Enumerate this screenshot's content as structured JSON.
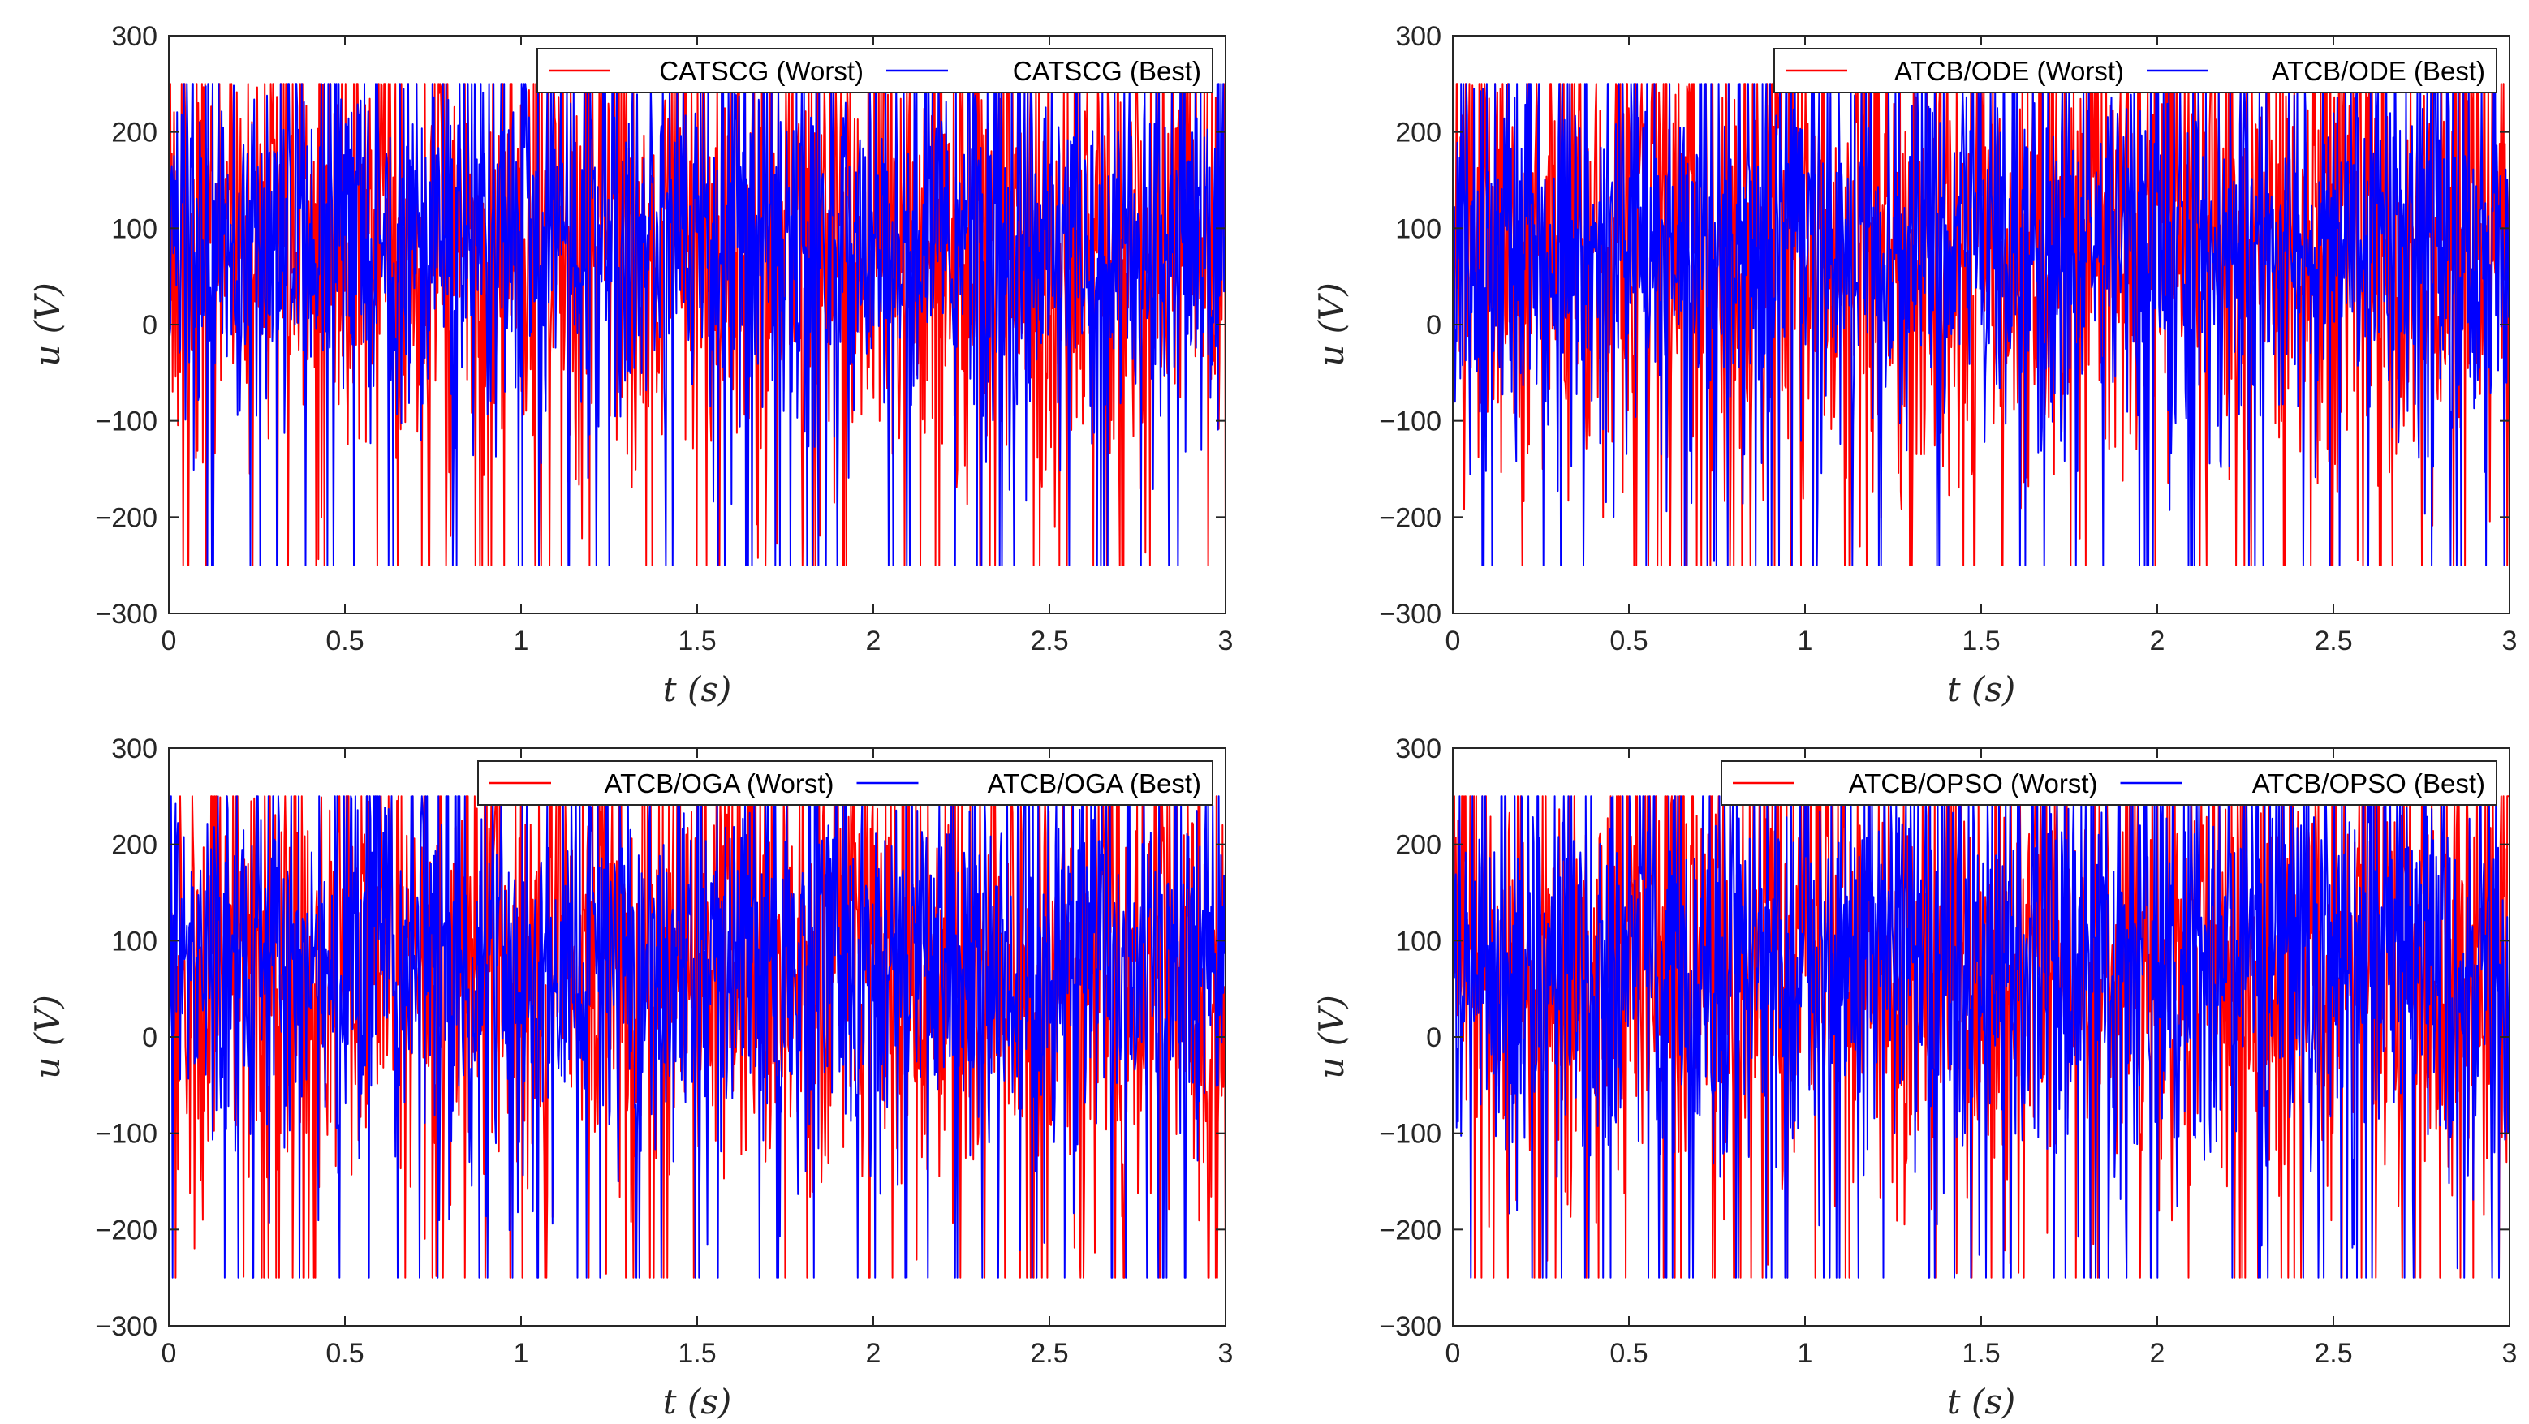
{
  "chart_data": [
    {
      "type": "line",
      "title": "",
      "xlabel": "t (s)",
      "ylabel": "u (V)",
      "xlim": [
        0,
        3
      ],
      "ylim": [
        -300,
        300
      ],
      "xticks": [
        "0",
        "0.5",
        "1",
        "1.5",
        "2",
        "2.5",
        "3"
      ],
      "yticks": [
        "300",
        "200",
        "100",
        "0",
        "−100",
        "−200",
        "−300"
      ],
      "saturation": [
        -250,
        250
      ],
      "grid": false,
      "legend": "top-right",
      "series": [
        {
          "name": "CATSCG (Worst)",
          "color": "#ff0000",
          "mean": 80,
          "spread": 115,
          "min": -250,
          "max": 250
        },
        {
          "name": "CATSCG (Best)",
          "color": "#0000ff",
          "mean": 80,
          "spread": 100,
          "min": -250,
          "max": 250
        }
      ]
    },
    {
      "type": "line",
      "title": "",
      "xlabel": "t (s)",
      "ylabel": "u (V)",
      "xlim": [
        0,
        3
      ],
      "ylim": [
        -300,
        300
      ],
      "xticks": [
        "0",
        "0.5",
        "1",
        "1.5",
        "2",
        "2.5",
        "3"
      ],
      "yticks": [
        "300",
        "200",
        "100",
        "0",
        "−100",
        "−200",
        "−300"
      ],
      "saturation": [
        -250,
        250
      ],
      "grid": false,
      "legend": "top-right",
      "series": [
        {
          "name": "ATCB/ODE (Worst)",
          "color": "#ff0000",
          "mean": 75,
          "spread": 115,
          "min": -250,
          "max": 250
        },
        {
          "name": "ATCB/ODE (Best)",
          "color": "#0000ff",
          "mean": 75,
          "spread": 100,
          "min": -250,
          "max": 250
        }
      ]
    },
    {
      "type": "line",
      "title": "",
      "xlabel": "t (s)",
      "ylabel": "u (V)",
      "xlim": [
        0,
        3
      ],
      "ylim": [
        -300,
        300
      ],
      "xticks": [
        "0",
        "0.5",
        "1",
        "1.5",
        "2",
        "2.5",
        "3"
      ],
      "yticks": [
        "300",
        "200",
        "100",
        "0",
        "−100",
        "−200",
        "−300"
      ],
      "saturation": [
        -250,
        250
      ],
      "grid": false,
      "legend": "top-right",
      "series": [
        {
          "name": "ATCB/OGA (Worst)",
          "color": "#ff0000",
          "mean": 75,
          "spread": 120,
          "min": -250,
          "max": 250
        },
        {
          "name": "ATCB/OGA (Best)",
          "color": "#0000ff",
          "mean": 75,
          "spread": 105,
          "min": -250,
          "max": 250
        }
      ]
    },
    {
      "type": "line",
      "title": "",
      "xlabel": "t (s)",
      "ylabel": "u (V)",
      "xlim": [
        0,
        3
      ],
      "ylim": [
        -300,
        300
      ],
      "xticks": [
        "0",
        "0.5",
        "1",
        "1.5",
        "2",
        "2.5",
        "3"
      ],
      "yticks": [
        "300",
        "200",
        "100",
        "0",
        "−100",
        "−200",
        "−300"
      ],
      "saturation": [
        -250,
        250
      ],
      "grid": false,
      "legend": "top-right",
      "series": [
        {
          "name": "ATCB/OPSO (Worst)",
          "color": "#ff0000",
          "mean": 75,
          "spread": 115,
          "min": -250,
          "max": 250
        },
        {
          "name": "ATCB/OPSO (Best)",
          "color": "#0000ff",
          "mean": 75,
          "spread": 105,
          "min": -250,
          "max": 250
        }
      ]
    }
  ]
}
